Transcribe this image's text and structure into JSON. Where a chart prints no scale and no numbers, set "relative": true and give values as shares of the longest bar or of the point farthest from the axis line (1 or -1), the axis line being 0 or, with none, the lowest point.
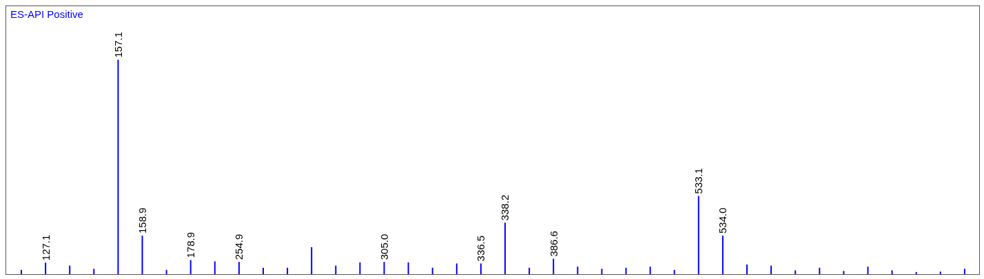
{
  "chart_data": {
    "type": "bar",
    "title": "ES-API Positive",
    "relative": true,
    "color": "#0000ff",
    "categories": [
      null,
      "127.1",
      null,
      null,
      "157.1",
      "158.9",
      null,
      "178.9",
      null,
      "254.9",
      null,
      null,
      null,
      null,
      null,
      "305.0",
      null,
      null,
      null,
      "336.5",
      "338.2",
      null,
      "386.6",
      null,
      null,
      null,
      null,
      null,
      "533.1",
      "534.0",
      null,
      null,
      null,
      null,
      null,
      null,
      null,
      null,
      null,
      null
    ],
    "values": [
      0.02,
      0.054,
      0.04,
      0.025,
      1,
      0.18,
      0.02,
      0.066,
      0.06,
      0.057,
      0.03,
      0.03,
      0.126,
      0.04,
      0.055,
      0.057,
      0.055,
      0.03,
      0.05,
      0.05,
      0.24,
      0.03,
      0.072,
      0.035,
      0.025,
      0.03,
      0.035,
      0.02,
      0.365,
      0.18,
      0.045,
      0.04,
      0.018,
      0.03,
      0.015,
      0.035,
      0.018,
      0.01,
      0.012,
      0.025
    ]
  }
}
